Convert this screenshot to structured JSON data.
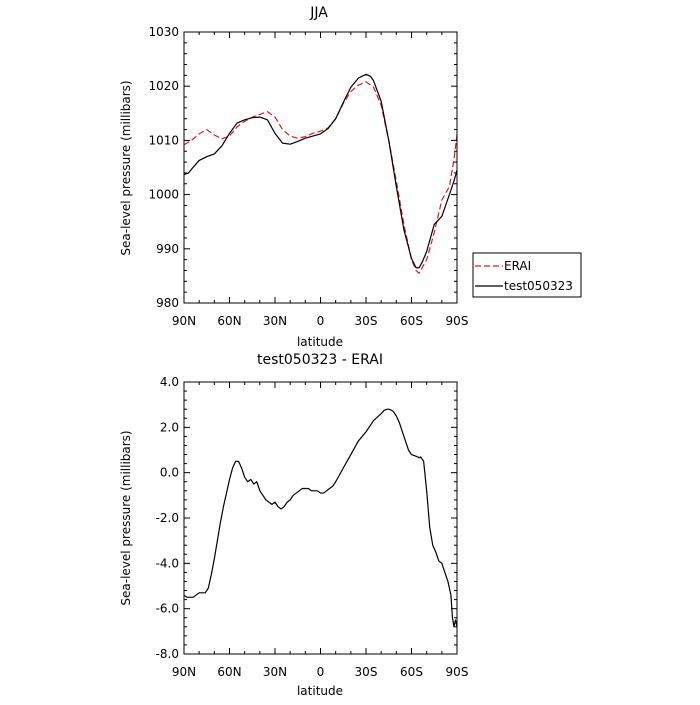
{
  "chart_data": [
    {
      "type": "line",
      "title": "JJA",
      "xlabel": "latitude",
      "ylabel": "Sea-level pressure (millibars)",
      "xlim": [
        90,
        -90
      ],
      "ylim": [
        980,
        1030
      ],
      "x_ticks": [
        90,
        60,
        30,
        0,
        -30,
        -60,
        -90
      ],
      "x_tick_labels": [
        "90N",
        "60N",
        "30N",
        "0",
        "30S",
        "60S",
        "90S"
      ],
      "y_ticks": [
        980,
        990,
        1000,
        1010,
        1020,
        1030
      ],
      "y_tick_labels": [
        "980",
        "990",
        "1000",
        "1010",
        "1020",
        "1030"
      ],
      "grid": false,
      "legend_position": "right-outside",
      "legend": [
        "ERAI",
        "test050323"
      ],
      "series": [
        {
          "name": "ERAI",
          "color": "#e0181d",
          "dash": "dashed",
          "x": [
            90,
            85,
            80,
            75,
            70,
            65,
            60,
            55,
            50,
            45,
            40,
            35,
            30,
            25,
            20,
            15,
            10,
            5,
            0,
            -5,
            -10,
            -15,
            -20,
            -25,
            -30,
            -35,
            -40,
            -45,
            -50,
            -55,
            -60,
            -63,
            -65,
            -67,
            -70,
            -75,
            -80,
            -85,
            -88,
            -90
          ],
          "y": [
            1009.2,
            1010.0,
            1011.2,
            1012.0,
            1011.0,
            1010.3,
            1010.8,
            1012.5,
            1013.5,
            1014.3,
            1014.8,
            1015.3,
            1014.3,
            1012.0,
            1010.8,
            1010.4,
            1010.7,
            1011.3,
            1011.7,
            1012.3,
            1014.0,
            1016.8,
            1019.0,
            1020.2,
            1020.8,
            1019.8,
            1016.5,
            1010.0,
            1002.5,
            994.5,
            988.0,
            986.0,
            985.5,
            986.5,
            988.0,
            993.0,
            999.0,
            1001.5,
            1006.5,
            1011.0
          ]
        },
        {
          "name": "test050323",
          "color": "#000000",
          "dash": "solid",
          "x": [
            90,
            87,
            85,
            80,
            75,
            70,
            65,
            60,
            55,
            50,
            45,
            40,
            35,
            30,
            25,
            20,
            15,
            10,
            5,
            0,
            -5,
            -10,
            -15,
            -20,
            -25,
            -30,
            -33,
            -35,
            -40,
            -45,
            -50,
            -55,
            -60,
            -63,
            -65,
            -67,
            -70,
            -75,
            -80,
            -85,
            -88,
            -90
          ],
          "y": [
            1003.7,
            1004.0,
            1004.7,
            1006.3,
            1007.0,
            1007.5,
            1009.0,
            1011.3,
            1013.2,
            1013.8,
            1014.2,
            1014.3,
            1013.8,
            1011.3,
            1009.5,
            1009.3,
            1009.8,
            1010.4,
            1010.8,
            1011.2,
            1012.2,
            1014.0,
            1017.0,
            1019.8,
            1021.5,
            1022.2,
            1021.8,
            1021.0,
            1017.2,
            1010.0,
            1001.5,
            993.5,
            988.2,
            986.5,
            986.5,
            987.5,
            989.5,
            994.5,
            996.0,
            1000.0,
            1002.5,
            1004.5
          ]
        }
      ]
    },
    {
      "type": "line",
      "title": "test050323 - ERAI",
      "xlabel": "latitude",
      "ylabel": "Sea-level pressure (millibars)",
      "xlim": [
        90,
        -90
      ],
      "ylim": [
        -8.0,
        4.0
      ],
      "x_ticks": [
        90,
        60,
        30,
        0,
        -30,
        -60,
        -90
      ],
      "x_tick_labels": [
        "90N",
        "60N",
        "30N",
        "0",
        "30S",
        "60S",
        "90S"
      ],
      "y_ticks": [
        -8.0,
        -6.0,
        -4.0,
        -2.0,
        0.0,
        2.0,
        4.0
      ],
      "y_tick_labels": [
        "-8.0",
        "-6.0",
        "-4.0",
        "-2.0",
        "0.0",
        "2.0",
        "4.0"
      ],
      "grid": false,
      "series": [
        {
          "color": "#000000",
          "dash": "solid",
          "x": [
            90,
            88,
            86,
            84,
            82,
            80,
            78,
            76,
            74,
            72,
            70,
            68,
            66,
            64,
            62,
            60,
            58,
            56,
            54,
            52,
            50,
            48,
            46,
            44,
            42,
            40,
            38,
            36,
            34,
            32,
            30,
            28,
            26,
            24,
            22,
            20,
            18,
            16,
            14,
            12,
            10,
            8,
            6,
            4,
            2,
            0,
            -2,
            -4,
            -6,
            -8,
            -10,
            -15,
            -20,
            -25,
            -30,
            -35,
            -40,
            -42,
            -44,
            -45,
            -46,
            -48,
            -50,
            -52,
            -54,
            -56,
            -58,
            -60,
            -62,
            -64,
            -65,
            -66,
            -67,
            -68,
            -70,
            -72,
            -74,
            -76,
            -78,
            -80,
            -82,
            -84,
            -86,
            -87,
            -88,
            -89,
            -90
          ],
          "y": [
            -5.4,
            -5.5,
            -5.5,
            -5.5,
            -5.4,
            -5.3,
            -5.3,
            -5.3,
            -5.1,
            -4.5,
            -3.8,
            -3.0,
            -2.2,
            -1.5,
            -0.9,
            -0.3,
            0.2,
            0.5,
            0.5,
            0.2,
            -0.2,
            -0.4,
            -0.3,
            -0.5,
            -0.4,
            -0.8,
            -1.0,
            -1.2,
            -1.3,
            -1.4,
            -1.3,
            -1.5,
            -1.6,
            -1.5,
            -1.3,
            -1.2,
            -1.0,
            -0.9,
            -0.8,
            -0.7,
            -0.7,
            -0.7,
            -0.8,
            -0.8,
            -0.8,
            -0.9,
            -0.9,
            -0.8,
            -0.7,
            -0.6,
            -0.4,
            0.2,
            0.8,
            1.4,
            1.8,
            2.3,
            2.6,
            2.75,
            2.8,
            2.8,
            2.78,
            2.7,
            2.5,
            2.2,
            1.8,
            1.4,
            1.0,
            0.8,
            0.75,
            0.7,
            0.65,
            0.7,
            0.6,
            0.5,
            -0.8,
            -2.4,
            -3.2,
            -3.5,
            -3.9,
            -4.0,
            -4.4,
            -4.8,
            -5.4,
            -6.4,
            -6.8,
            -6.5,
            -6.8
          ]
        }
      ]
    }
  ]
}
